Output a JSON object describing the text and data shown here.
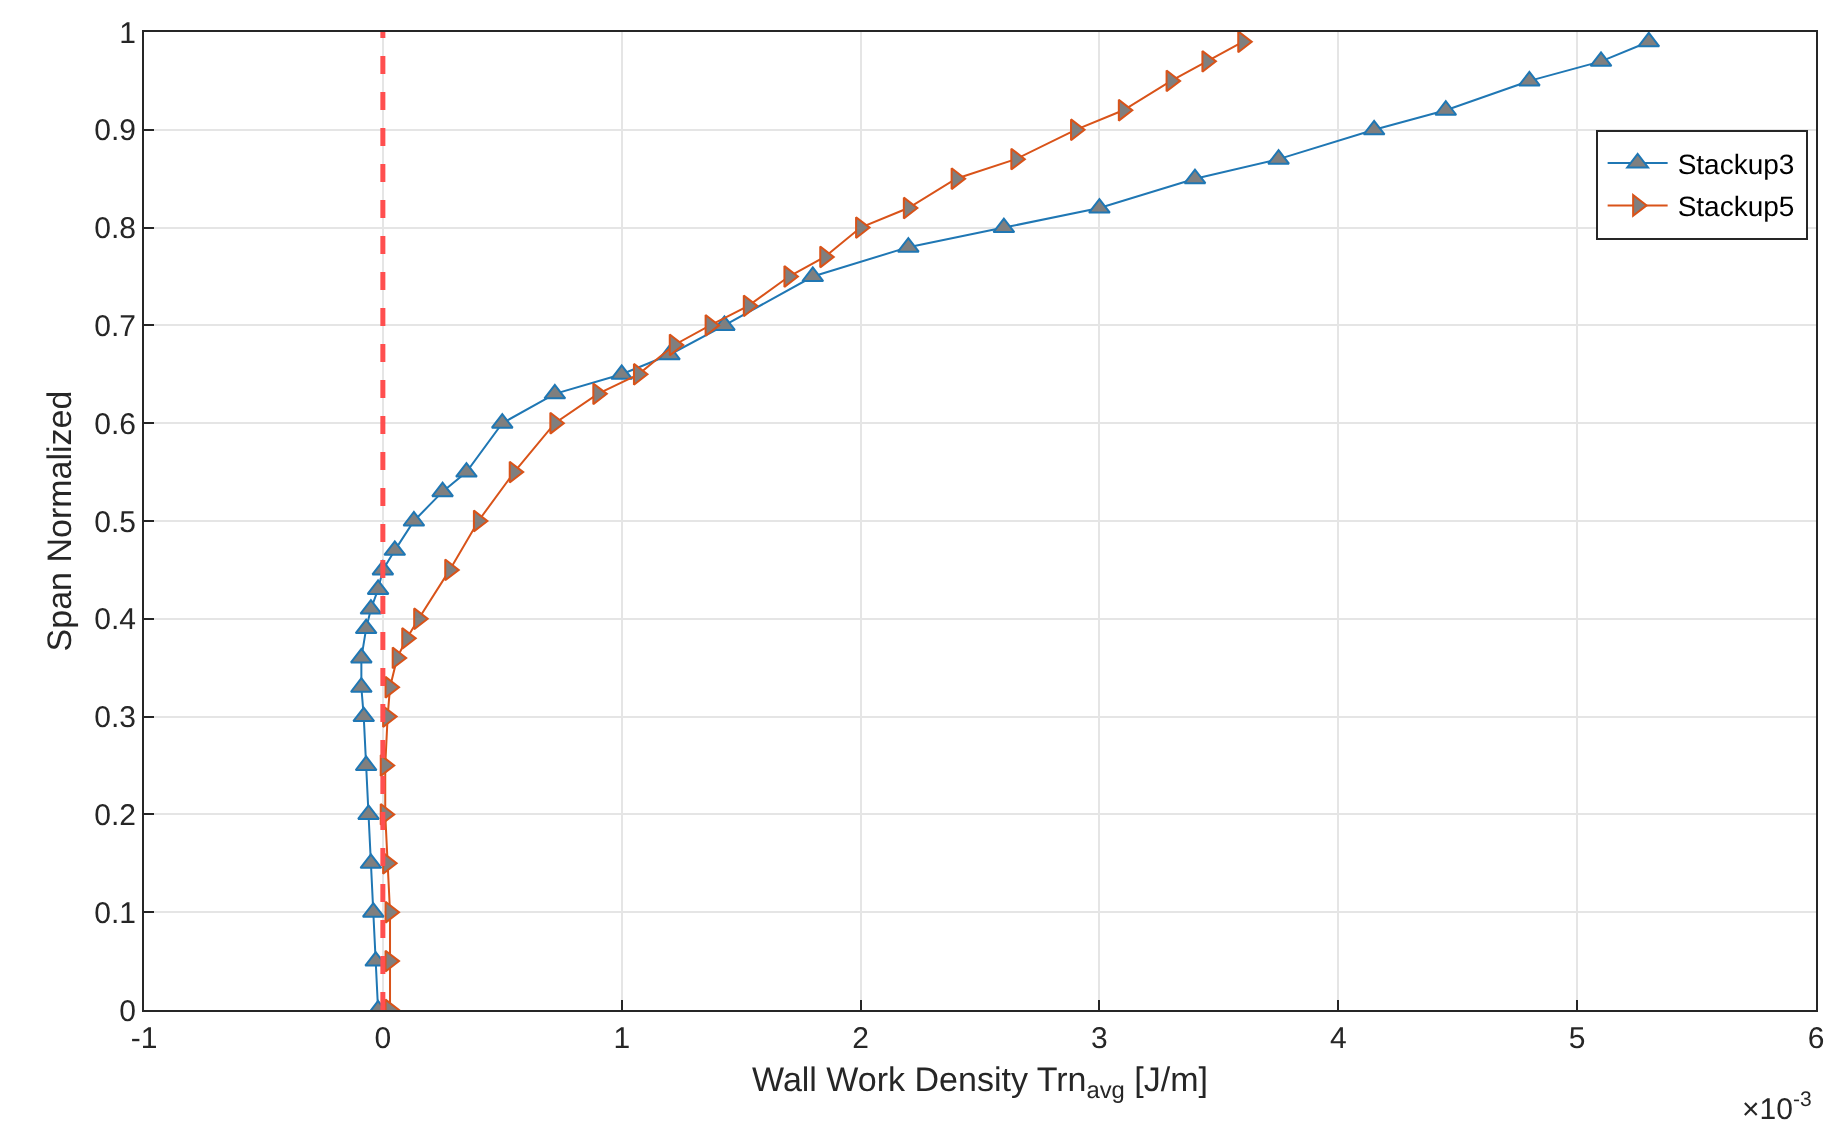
{
  "chart_data": {
    "type": "line",
    "xlabel": "Wall Work Density Trn$_{avg}$ [J/m]",
    "ylabel": "Span Normalized",
    "annotations": [
      "×10$^{-3}$"
    ],
    "xlim": [
      -1,
      6
    ],
    "xticks": [
      -1,
      0,
      1,
      2,
      3,
      4,
      5,
      6
    ],
    "ylim": [
      0,
      1
    ],
    "yticks": [
      0,
      0.1,
      0.2,
      0.3,
      0.4,
      0.5,
      0.6,
      0.7,
      0.8,
      0.9,
      1
    ],
    "grid": true,
    "legend": "top right",
    "line_style": "solid",
    "ref_lines": [
      {
        "axis": "x",
        "value": 0,
        "label": null,
        "color": "#ff4f4f",
        "line_style": "dashed"
      }
    ],
    "series": [
      {
        "name": "Stackup3",
        "color": "#1f77b4",
        "marker": "triangle",
        "x": [
          -0.02,
          -0.03,
          -0.04,
          -0.05,
          -0.06,
          -0.07,
          -0.08,
          -0.09,
          -0.09,
          -0.07,
          -0.05,
          -0.02,
          0.0,
          0.05,
          0.13,
          0.25,
          0.35,
          0.5,
          0.72,
          1.0,
          1.2,
          1.43,
          1.8,
          2.2,
          2.6,
          3.0,
          3.4,
          3.75,
          4.15,
          4.45,
          4.8,
          5.1,
          5.3
        ],
        "values": [
          0.0,
          0.05,
          0.1,
          0.15,
          0.2,
          0.25,
          0.3,
          0.33,
          0.36,
          0.39,
          0.41,
          0.43,
          0.45,
          0.47,
          0.5,
          0.53,
          0.55,
          0.6,
          0.63,
          0.65,
          0.67,
          0.7,
          0.75,
          0.78,
          0.8,
          0.82,
          0.85,
          0.87,
          0.9,
          0.92,
          0.95,
          0.97,
          0.99
        ]
      },
      {
        "name": "Stackup5",
        "color": "#d95319",
        "marker": "triangle-right",
        "x": [
          0.03,
          0.03,
          0.03,
          0.02,
          0.01,
          0.01,
          0.02,
          0.03,
          0.06,
          0.1,
          0.15,
          0.28,
          0.4,
          0.55,
          0.72,
          0.9,
          1.07,
          1.22,
          1.37,
          1.53,
          1.7,
          1.85,
          2.0,
          2.2,
          2.4,
          2.65,
          2.9,
          3.1,
          3.3,
          3.45,
          3.6
        ],
        "values": [
          0.0,
          0.05,
          0.1,
          0.15,
          0.2,
          0.25,
          0.3,
          0.33,
          0.36,
          0.38,
          0.4,
          0.45,
          0.5,
          0.55,
          0.6,
          0.63,
          0.65,
          0.68,
          0.7,
          0.72,
          0.75,
          0.77,
          0.8,
          0.82,
          0.85,
          0.87,
          0.9,
          0.92,
          0.95,
          0.97,
          0.99
        ]
      }
    ]
  }
}
